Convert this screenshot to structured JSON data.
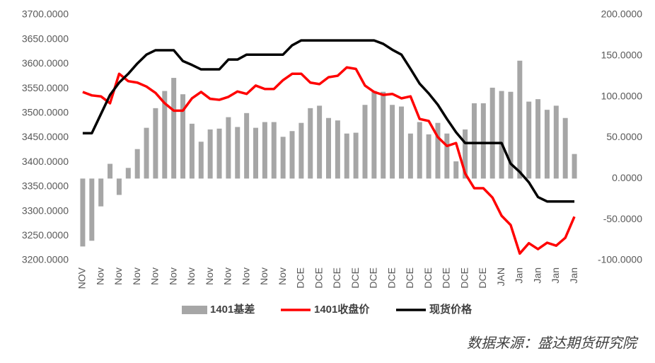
{
  "chart_data": {
    "type": "bar-line",
    "categories": [
      "NOV",
      null,
      "Nov",
      null,
      "Nov",
      null,
      "Nov",
      null,
      "Nov",
      null,
      "Nov",
      null,
      "Nov",
      null,
      "Nov",
      null,
      "Nov",
      null,
      "Nov",
      null,
      "Nov",
      null,
      "Nov",
      null,
      "DCE",
      null,
      "DCE",
      null,
      "DCE",
      null,
      "DCE",
      null,
      "DCE",
      null,
      "DCE",
      null,
      "DCE",
      null,
      "DCE",
      null,
      "DCE",
      null,
      "DCE",
      null,
      "DCE",
      null,
      "JAN",
      null,
      "Jan",
      null,
      "Jan",
      null,
      "Jan",
      null,
      "Jan"
    ],
    "series": [
      {
        "name": "1401基差",
        "type": "bar",
        "axis": "y2",
        "color": "#a6a6a6",
        "values": [
          -83,
          -76,
          -34,
          18,
          -20,
          13,
          36,
          62,
          86,
          107,
          123,
          103,
          67,
          45,
          60,
          61,
          75,
          63,
          80,
          62,
          69,
          69,
          51,
          58,
          68,
          86,
          89,
          74,
          71,
          55,
          56,
          90,
          107,
          106,
          90,
          88,
          55,
          69,
          54,
          68,
          55,
          21,
          60,
          92,
          92,
          111,
          107,
          106,
          144,
          94,
          97,
          84,
          89,
          74,
          30
        ]
      },
      {
        "name": "1401收盘价",
        "type": "line",
        "color": "#ff0000",
        "values": [
          3543,
          3536,
          3534,
          3520,
          3580,
          3565,
          3562,
          3554,
          3541,
          3520,
          3505,
          3505,
          3530,
          3543,
          3529,
          3527,
          3533,
          3544,
          3539,
          3556,
          3549,
          3549,
          3567,
          3580,
          3580,
          3562,
          3559,
          3573,
          3576,
          3593,
          3590,
          3556,
          3543,
          3537,
          3539,
          3530,
          3534,
          3488,
          3484,
          3451,
          3433,
          3439,
          3377,
          3347,
          3347,
          3328,
          3291,
          3272,
          3214,
          3235,
          3223,
          3236,
          3230,
          3246,
          3289
        ]
      },
      {
        "name": "现货价格",
        "type": "line",
        "color": "#000000",
        "values": [
          3459,
          3459,
          3498,
          3537,
          3562,
          3580,
          3601,
          3619,
          3628,
          3628,
          3628,
          3606,
          3598,
          3589,
          3589,
          3589,
          3609,
          3609,
          3619,
          3619,
          3619,
          3619,
          3619,
          3638,
          3648,
          3648,
          3648,
          3648,
          3648,
          3648,
          3648,
          3648,
          3648,
          3641,
          3629,
          3619,
          3590,
          3560,
          3540,
          3517,
          3488,
          3461,
          3439,
          3439,
          3439,
          3439,
          3439,
          3397,
          3380,
          3359,
          3329,
          3320,
          3320,
          3320,
          3320
        ]
      }
    ],
    "ylim": [
      3200,
      3700
    ],
    "yticks": [
      {
        "value": 3200,
        "label": "3200.0000"
      },
      {
        "value": 3250,
        "label": "3250.0000"
      },
      {
        "value": 3300,
        "label": "3300.0000"
      },
      {
        "value": 3350,
        "label": "3350.0000"
      },
      {
        "value": 3400,
        "label": "3400.0000"
      },
      {
        "value": 3450,
        "label": "3450.0000"
      },
      {
        "value": 3500,
        "label": "3500.0000"
      },
      {
        "value": 3550,
        "label": "3550.0000"
      },
      {
        "value": 3600,
        "label": "3600.0000"
      },
      {
        "value": 3650,
        "label": "3650.0000"
      },
      {
        "value": 3700,
        "label": "3700.0000"
      }
    ],
    "y2lim": [
      -100,
      200
    ],
    "y2ticks": [
      {
        "value": -100,
        "label": "-100.0000"
      },
      {
        "value": -50,
        "label": "-50.0000"
      },
      {
        "value": 0,
        "label": "0.0000"
      },
      {
        "value": 50,
        "label": "50.0000"
      },
      {
        "value": 100,
        "label": "100.0000"
      },
      {
        "value": 150,
        "label": "150.0000"
      },
      {
        "value": 200,
        "label": "200.0000"
      }
    ],
    "grid": false,
    "legend": "bottom",
    "source": "数据来源：盛达期货研究院"
  }
}
